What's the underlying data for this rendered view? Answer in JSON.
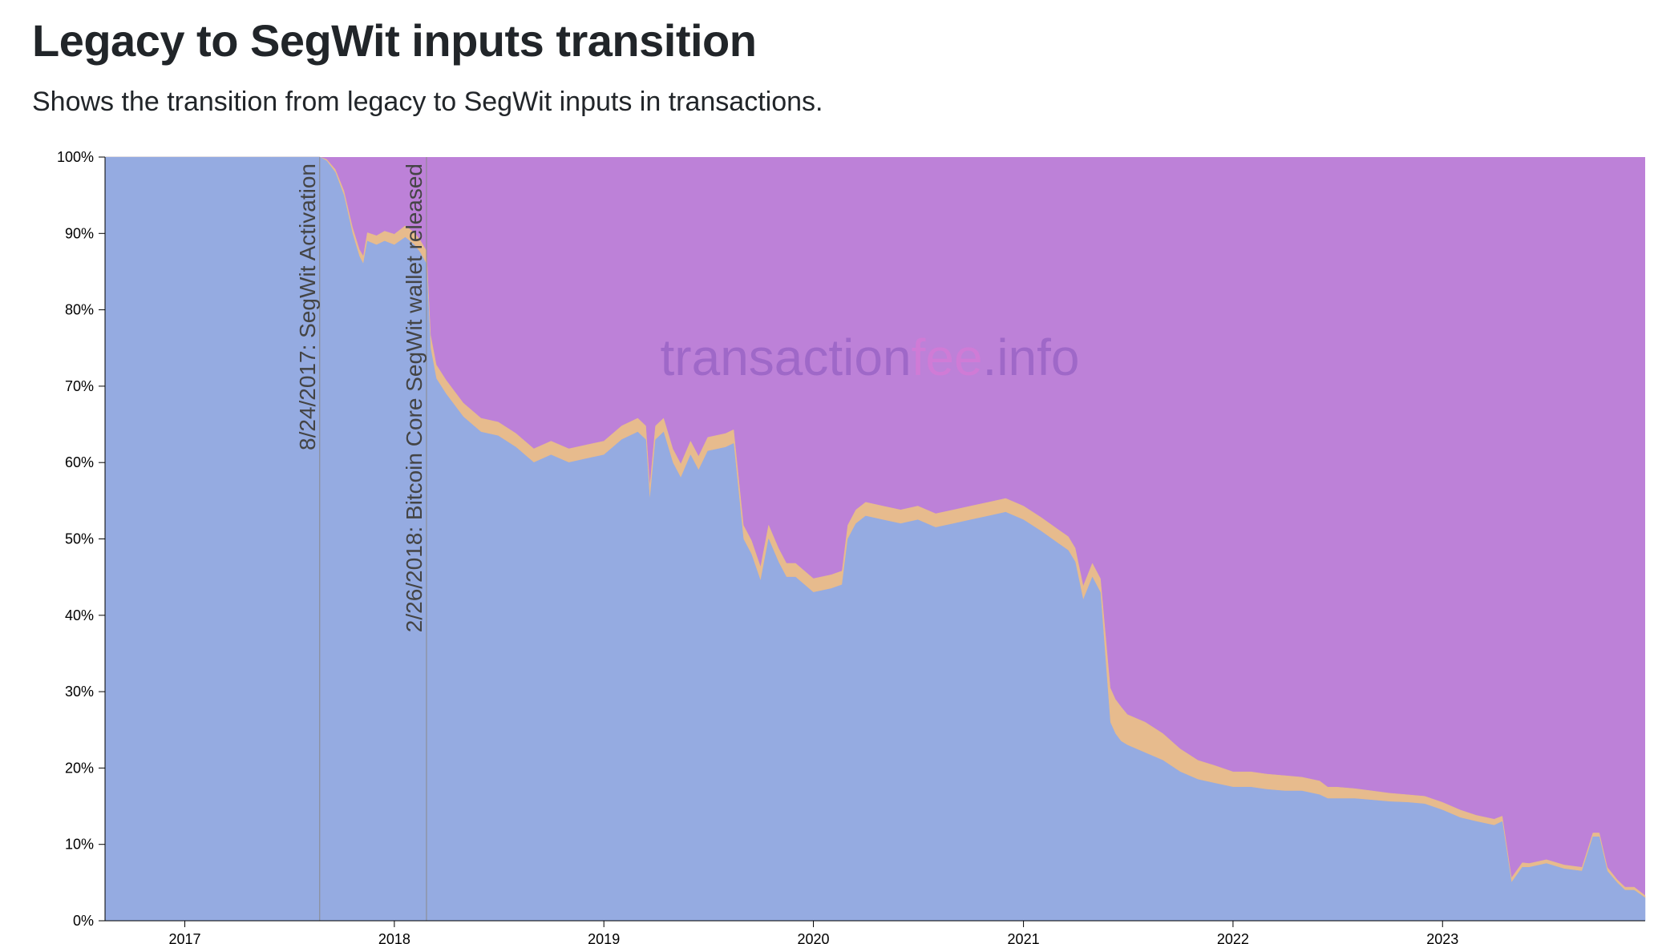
{
  "page": {
    "title": "Legacy to SegWit inputs transition",
    "subtitle": "Shows the transition from legacy to SegWit inputs in transactions."
  },
  "watermark": {
    "part1": "transaction",
    "part2": "fee",
    "part3": ".info",
    "colors": {
      "part1": "#9a64c6",
      "part2": "#d37ad6",
      "part3": "#9a64c6"
    }
  },
  "chart_data": {
    "type": "area",
    "stacked": true,
    "percent": true,
    "x_type": "date",
    "xlim": [
      "2016-08-15",
      "2023-12-20"
    ],
    "ylim": [
      0,
      100
    ],
    "x_ticks": [
      "2017",
      "2018",
      "2019",
      "2020",
      "2021",
      "2022",
      "2023"
    ],
    "y_ticks": [
      "0%",
      "10%",
      "20%",
      "30%",
      "40%",
      "50%",
      "60%",
      "70%",
      "80%",
      "90%",
      "100%"
    ],
    "series": [
      {
        "key": "legacy",
        "color": "#95abe1"
      },
      {
        "key": "nested",
        "color": "#e7bb8d"
      },
      {
        "key": "native",
        "color": "#bd81d8"
      }
    ],
    "x": [
      "2016-08-15",
      "2017-01-01",
      "2017-06-01",
      "2017-08-24",
      "2017-09-05",
      "2017-09-20",
      "2017-10-05",
      "2017-10-20",
      "2017-11-01",
      "2017-11-08",
      "2017-11-15",
      "2017-12-01",
      "2017-12-15",
      "2018-01-01",
      "2018-01-20",
      "2018-02-05",
      "2018-02-15",
      "2018-02-26",
      "2018-03-05",
      "2018-03-15",
      "2018-04-01",
      "2018-05-01",
      "2018-06-01",
      "2018-07-01",
      "2018-08-01",
      "2018-09-01",
      "2018-10-01",
      "2018-11-01",
      "2018-12-01",
      "2019-01-01",
      "2019-02-01",
      "2019-03-01",
      "2019-03-15",
      "2019-03-22",
      "2019-04-01",
      "2019-04-15",
      "2019-05-01",
      "2019-05-15",
      "2019-06-01",
      "2019-06-15",
      "2019-07-01",
      "2019-08-01",
      "2019-08-15",
      "2019-09-01",
      "2019-09-15",
      "2019-10-01",
      "2019-10-15",
      "2019-11-01",
      "2019-11-15",
      "2019-12-01",
      "2020-01-01",
      "2020-02-01",
      "2020-02-20",
      "2020-03-01",
      "2020-03-15",
      "2020-04-01",
      "2020-05-01",
      "2020-06-01",
      "2020-07-01",
      "2020-08-01",
      "2020-09-01",
      "2020-10-01",
      "2020-11-01",
      "2020-12-01",
      "2021-01-01",
      "2021-02-01",
      "2021-03-01",
      "2021-03-20",
      "2021-04-01",
      "2021-04-15",
      "2021-05-01",
      "2021-05-15",
      "2021-06-01",
      "2021-06-10",
      "2021-06-20",
      "2021-07-01",
      "2021-08-01",
      "2021-09-01",
      "2021-10-01",
      "2021-11-01",
      "2021-12-01",
      "2022-01-01",
      "2022-02-01",
      "2022-03-01",
      "2022-04-01",
      "2022-05-01",
      "2022-06-01",
      "2022-06-15",
      "2022-07-01",
      "2022-08-01",
      "2022-09-01",
      "2022-10-01",
      "2022-11-01",
      "2022-12-01",
      "2023-01-01",
      "2023-02-01",
      "2023-03-01",
      "2023-04-01",
      "2023-04-15",
      "2023-05-01",
      "2023-05-20",
      "2023-06-01",
      "2023-07-01",
      "2023-08-01",
      "2023-09-01",
      "2023-09-20",
      "2023-10-01",
      "2023-10-15",
      "2023-11-01",
      "2023-11-15",
      "2023-12-01",
      "2023-12-20"
    ],
    "legacy": [
      100,
      100,
      100,
      100,
      99.5,
      98,
      95,
      90,
      87,
      86,
      89,
      88.5,
      89,
      88.5,
      89.5,
      88.5,
      87.5,
      86,
      75,
      71,
      69,
      66,
      64,
      63.5,
      62,
      60,
      61,
      60,
      60.5,
      61,
      63,
      64,
      63,
      55,
      63,
      64,
      60,
      58,
      61,
      59,
      61.5,
      62,
      62.5,
      50,
      48,
      44.5,
      50,
      47,
      45,
      45,
      43,
      43.5,
      44,
      50,
      52,
      53,
      52.5,
      52,
      52.5,
      51.5,
      52,
      52.5,
      53,
      53.5,
      52.5,
      51,
      49.5,
      48.5,
      47,
      42,
      45,
      43,
      26,
      24.5,
      23.5,
      23,
      22,
      21,
      19.5,
      18.5,
      18,
      17.5,
      17.5,
      17.2,
      17,
      17,
      16.5,
      16,
      16,
      16,
      15.8,
      15.6,
      15.5,
      15.3,
      14.5,
      13.5,
      13,
      12.5,
      13,
      5,
      7,
      7,
      7.5,
      6.8,
      6.5,
      11,
      11,
      6.5,
      5,
      4,
      4,
      3
    ],
    "nested": [
      0,
      0,
      0,
      0,
      0.2,
      0.4,
      0.6,
      0.8,
      0.9,
      1.0,
      1.1,
      1.2,
      1.3,
      1.4,
      1.5,
      1.6,
      1.6,
      1.7,
      1.7,
      1.8,
      1.8,
      1.8,
      1.8,
      1.8,
      1.8,
      1.8,
      1.8,
      1.8,
      1.8,
      1.8,
      1.8,
      1.8,
      1.8,
      1.8,
      1.8,
      1.8,
      1.8,
      1.8,
      1.8,
      1.8,
      1.8,
      1.8,
      1.8,
      1.8,
      1.8,
      1.8,
      1.8,
      1.8,
      1.8,
      1.8,
      1.8,
      1.8,
      1.8,
      1.8,
      1.8,
      1.8,
      1.8,
      1.8,
      1.8,
      1.8,
      1.8,
      1.8,
      1.8,
      1.8,
      1.8,
      1.8,
      1.8,
      1.8,
      1.8,
      1.8,
      1.8,
      1.8,
      4.5,
      4.5,
      4.5,
      4.0,
      4.0,
      3.5,
      3.0,
      2.5,
      2.3,
      2.0,
      2.0,
      2.0,
      2.0,
      1.8,
      1.8,
      1.5,
      1.5,
      1.3,
      1.2,
      1.1,
      1.0,
      1.0,
      1.0,
      1.0,
      0.8,
      0.8,
      0.7,
      0.6,
      0.6,
      0.5,
      0.5,
      0.5,
      0.5,
      0.5,
      0.5,
      0.5,
      0.4,
      0.4,
      0.4,
      0.3
    ],
    "annotations": [
      {
        "date": "2017-08-24",
        "label": "8/24/2017: SegWit Activation"
      },
      {
        "date": "2018-02-26",
        "label": "2/26/2018: Bitcoin Core SegWit wallet released"
      }
    ]
  }
}
